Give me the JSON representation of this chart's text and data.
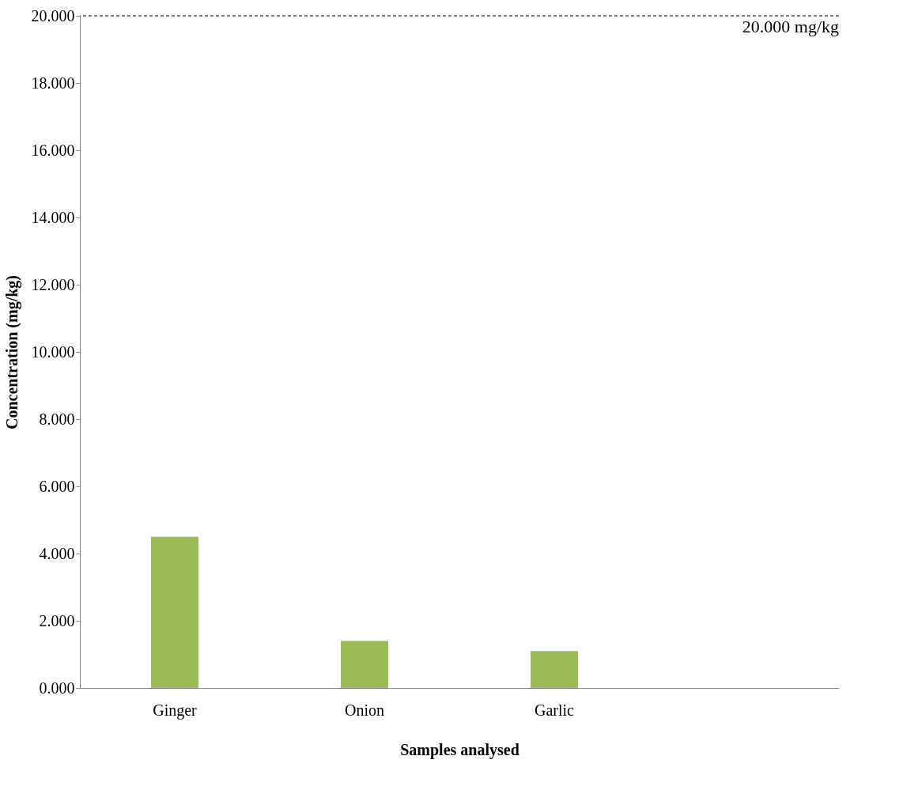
{
  "chart_data": {
    "type": "bar",
    "xlabel": "Samples analysed",
    "ylabel": "Concentration  (mg/kg)",
    "categories": [
      "Ginger",
      "Onion",
      "Garlic",
      null
    ],
    "values": [
      4.5,
      1.4,
      1.1,
      null
    ],
    "color": "#9bbb59",
    "ylim": [
      0,
      20
    ],
    "yticks": [
      {
        "value": 0,
        "label": "0.000"
      },
      {
        "value": 2,
        "label": "2.000"
      },
      {
        "value": 4,
        "label": "4.000"
      },
      {
        "value": 6,
        "label": "6.000"
      },
      {
        "value": 8,
        "label": "8.000"
      },
      {
        "value": 10,
        "label": "10.000"
      },
      {
        "value": 12,
        "label": "12.000"
      },
      {
        "value": 14,
        "label": "14.000"
      },
      {
        "value": 16,
        "label": "16.000"
      },
      {
        "value": 18,
        "label": "18.000"
      },
      {
        "value": 20,
        "label": "20.000"
      }
    ],
    "ref_lines": [
      {
        "axis": "y",
        "value": 20,
        "label": "20.000 mg/kg",
        "color": "#000000",
        "line_style": "dashed"
      }
    ],
    "grid": false
  }
}
